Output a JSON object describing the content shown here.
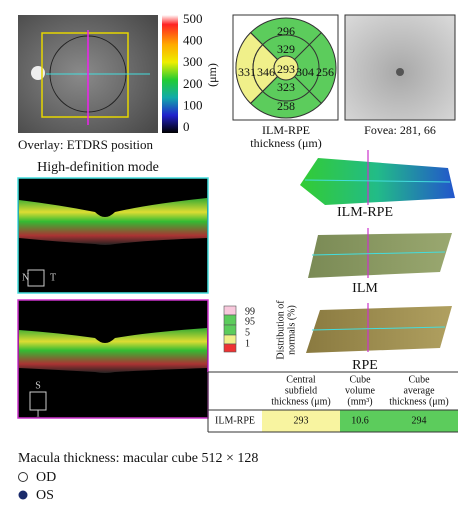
{
  "colorbar": {
    "ticks": [
      "500",
      "400",
      "300",
      "200",
      "100",
      "0"
    ],
    "unit": "(μm)"
  },
  "overlay_caption": "Overlay: ETDRS position",
  "etdrs": {
    "superior_outer": "296",
    "superior_inner": "329",
    "temporal_outer": "331",
    "temporal_inner": "346",
    "center": "293",
    "nasal_inner": "304",
    "nasal_outer": "256",
    "inferior_inner": "323",
    "inferior_outer": "258",
    "caption": [
      "ILM-RPE",
      "thickness (μm)"
    ]
  },
  "fovea_caption": "Fovea: 281, 66",
  "hd_caption": "High-definition mode",
  "scan_labels": {
    "n": "N",
    "t": "T",
    "s": "S",
    "i": "I"
  },
  "surfaces": [
    "ILM-RPE",
    "ILM",
    "RPE"
  ],
  "legend": {
    "levels": [
      "99",
      "95",
      "5",
      "1"
    ],
    "title": [
      "Distribution of",
      "normals (%)"
    ]
  },
  "table": {
    "headers": [
      [
        "Central",
        "subfield",
        "thickness (μm)"
      ],
      [
        "Cube",
        "volume",
        "(mm³)"
      ],
      [
        "Cube",
        "average",
        "thickness (μm)"
      ]
    ],
    "rows": [
      [
        "ILM-RPE",
        "293",
        "10.6",
        "294"
      ]
    ]
  },
  "footer": {
    "title": "Macula thickness: macular cube 512 × 128",
    "od": "OD",
    "os": "OS"
  }
}
